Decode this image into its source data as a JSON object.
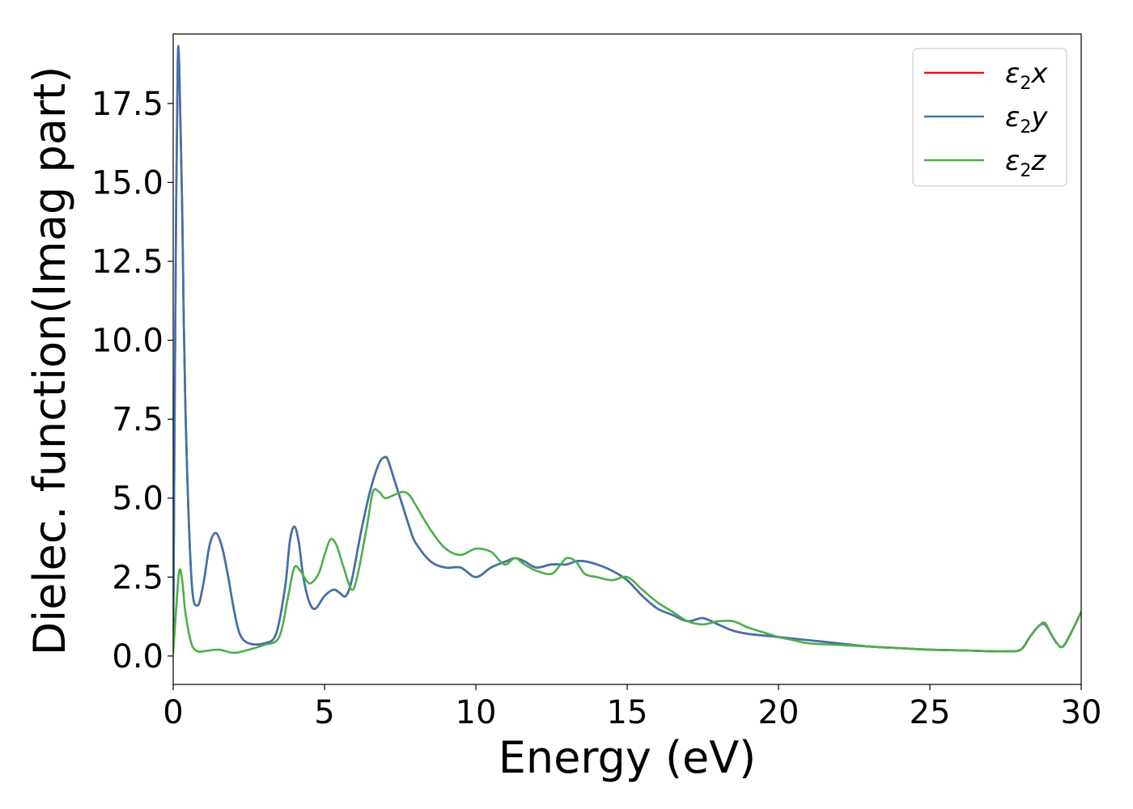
{
  "chart_data": {
    "type": "line",
    "xlabel": "Energy (eV)",
    "ylabel": "Dielec. function(Imag part)",
    "xlim": [
      0,
      30
    ],
    "ylim": [
      -0.9,
      19.7
    ],
    "xticks": [
      0,
      5,
      10,
      15,
      20,
      25,
      30
    ],
    "xtick_labels": [
      "0",
      "5",
      "10",
      "15",
      "20",
      "25",
      "30"
    ],
    "yticks": [
      0,
      2.5,
      5,
      7.5,
      10,
      12.5,
      15,
      17.5
    ],
    "ytick_labels": [
      "0.0",
      "2.5",
      "5.0",
      "7.5",
      "10.0",
      "12.5",
      "15.0",
      "17.5"
    ],
    "grid": false,
    "legend_position": "top-right",
    "series": [
      {
        "name": "ε2x",
        "legend_symbol": "ε",
        "legend_sub": "2",
        "legend_var": "x",
        "color": "#e41a1c",
        "x": [
          0,
          0.05,
          0.1,
          0.15,
          0.2,
          0.3,
          0.4,
          0.6,
          0.8,
          1.0,
          1.2,
          1.4,
          1.6,
          1.8,
          2.0,
          2.2,
          2.5,
          3.0,
          3.4,
          3.7,
          3.85,
          4.0,
          4.15,
          4.3,
          4.5,
          4.7,
          5.0,
          5.3,
          5.5,
          5.7,
          5.9,
          6.2,
          6.5,
          6.8,
          7.0,
          7.1,
          7.3,
          7.6,
          7.8,
          8.0,
          8.5,
          9.0,
          9.5,
          10.0,
          10.5,
          11.0,
          11.3,
          11.6,
          12.0,
          12.5,
          13.0,
          13.3,
          13.6,
          14.0,
          14.5,
          15.0,
          15.5,
          16.0,
          16.5,
          17.0,
          17.5,
          18.0,
          18.5,
          19.0,
          19.5,
          20.0,
          21.0,
          22.0,
          23.0,
          24.0,
          25.0,
          26.0,
          27.0,
          27.5,
          28.0,
          28.3,
          28.6,
          28.8,
          29.0,
          29.2,
          29.4,
          29.7,
          30.0
        ],
        "y": [
          0.2,
          8.0,
          14.5,
          18.8,
          18.7,
          14.0,
          8.0,
          2.5,
          1.6,
          2.3,
          3.5,
          3.9,
          3.5,
          2.6,
          1.5,
          0.7,
          0.4,
          0.4,
          0.7,
          2.2,
          3.6,
          4.1,
          3.6,
          2.5,
          1.7,
          1.5,
          1.9,
          2.1,
          2.0,
          1.9,
          2.4,
          3.9,
          5.2,
          6.1,
          6.3,
          6.2,
          5.6,
          4.7,
          4.1,
          3.6,
          3.0,
          2.8,
          2.8,
          2.5,
          2.8,
          3.0,
          3.1,
          3.0,
          2.8,
          2.9,
          2.9,
          3.0,
          3.0,
          2.9,
          2.7,
          2.4,
          1.9,
          1.5,
          1.3,
          1.1,
          1.2,
          1.0,
          0.8,
          0.7,
          0.65,
          0.6,
          0.5,
          0.4,
          0.3,
          0.25,
          0.2,
          0.18,
          0.15,
          0.15,
          0.2,
          0.6,
          0.95,
          1.0,
          0.7,
          0.4,
          0.3,
          0.8,
          1.4
        ]
      },
      {
        "name": "ε2y",
        "legend_symbol": "ε",
        "legend_sub": "2",
        "legend_var": "y",
        "color": "#3f72af",
        "x": [
          0,
          0.05,
          0.1,
          0.15,
          0.2,
          0.3,
          0.4,
          0.6,
          0.8,
          1.0,
          1.2,
          1.4,
          1.6,
          1.8,
          2.0,
          2.2,
          2.5,
          3.0,
          3.4,
          3.7,
          3.85,
          4.0,
          4.15,
          4.3,
          4.5,
          4.7,
          5.0,
          5.3,
          5.5,
          5.7,
          5.9,
          6.2,
          6.5,
          6.8,
          7.0,
          7.1,
          7.3,
          7.6,
          7.8,
          8.0,
          8.5,
          9.0,
          9.5,
          10.0,
          10.5,
          11.0,
          11.3,
          11.6,
          12.0,
          12.5,
          13.0,
          13.3,
          13.6,
          14.0,
          14.5,
          15.0,
          15.5,
          16.0,
          16.5,
          17.0,
          17.5,
          18.0,
          18.5,
          19.0,
          19.5,
          20.0,
          21.0,
          22.0,
          23.0,
          24.0,
          25.0,
          26.0,
          27.0,
          27.5,
          28.0,
          28.3,
          28.6,
          28.8,
          29.0,
          29.2,
          29.4,
          29.7,
          30.0
        ],
        "y": [
          0.2,
          8.0,
          14.5,
          18.8,
          18.7,
          14.0,
          8.0,
          2.5,
          1.6,
          2.3,
          3.5,
          3.9,
          3.5,
          2.6,
          1.5,
          0.7,
          0.4,
          0.4,
          0.7,
          2.2,
          3.6,
          4.1,
          3.6,
          2.5,
          1.7,
          1.5,
          1.9,
          2.1,
          2.0,
          1.9,
          2.4,
          3.9,
          5.2,
          6.1,
          6.3,
          6.2,
          5.6,
          4.7,
          4.1,
          3.6,
          3.0,
          2.8,
          2.8,
          2.5,
          2.8,
          3.0,
          3.1,
          3.0,
          2.8,
          2.9,
          2.9,
          3.0,
          3.0,
          2.9,
          2.7,
          2.4,
          1.9,
          1.5,
          1.3,
          1.1,
          1.2,
          1.0,
          0.8,
          0.7,
          0.65,
          0.6,
          0.5,
          0.4,
          0.3,
          0.25,
          0.2,
          0.18,
          0.15,
          0.15,
          0.2,
          0.6,
          0.95,
          1.0,
          0.7,
          0.4,
          0.3,
          0.8,
          1.4
        ]
      },
      {
        "name": "ε2z",
        "legend_symbol": "ε",
        "legend_sub": "2",
        "legend_var": "z",
        "color": "#4daf4a",
        "x": [
          0,
          0.1,
          0.2,
          0.3,
          0.4,
          0.6,
          0.8,
          1.0,
          1.5,
          2.0,
          2.5,
          3.0,
          3.5,
          3.8,
          4.0,
          4.2,
          4.5,
          4.8,
          5.0,
          5.2,
          5.4,
          5.6,
          5.9,
          6.1,
          6.4,
          6.6,
          6.8,
          7.0,
          7.3,
          7.6,
          7.8,
          8.0,
          8.5,
          9.0,
          9.5,
          10.0,
          10.5,
          10.8,
          11.0,
          11.3,
          11.6,
          12.0,
          12.5,
          12.8,
          13.0,
          13.3,
          13.6,
          14.0,
          14.5,
          15.0,
          15.5,
          16.0,
          16.5,
          17.0,
          17.5,
          18.0,
          18.5,
          19.0,
          19.5,
          20.0,
          20.5,
          21.0,
          22.0,
          23.0,
          24.0,
          25.0,
          26.0,
          27.0,
          27.5,
          28.0,
          28.3,
          28.6,
          28.8,
          29.0,
          29.2,
          29.4,
          29.7,
          30.0
        ],
        "y": [
          0.1,
          1.5,
          2.7,
          2.4,
          1.4,
          0.4,
          0.15,
          0.15,
          0.2,
          0.1,
          0.2,
          0.35,
          0.6,
          1.9,
          2.8,
          2.7,
          2.3,
          2.6,
          3.2,
          3.7,
          3.5,
          2.9,
          2.1,
          2.6,
          4.1,
          5.2,
          5.2,
          5.0,
          5.1,
          5.2,
          5.1,
          4.8,
          4.0,
          3.4,
          3.2,
          3.4,
          3.3,
          3.0,
          2.9,
          3.1,
          2.9,
          2.7,
          2.6,
          2.9,
          3.1,
          3.0,
          2.6,
          2.5,
          2.4,
          2.5,
          2.1,
          1.7,
          1.4,
          1.1,
          1.0,
          1.1,
          1.1,
          0.9,
          0.75,
          0.6,
          0.5,
          0.4,
          0.35,
          0.3,
          0.25,
          0.2,
          0.18,
          0.15,
          0.15,
          0.2,
          0.6,
          0.95,
          1.05,
          0.7,
          0.4,
          0.3,
          0.8,
          1.4
        ]
      }
    ]
  }
}
